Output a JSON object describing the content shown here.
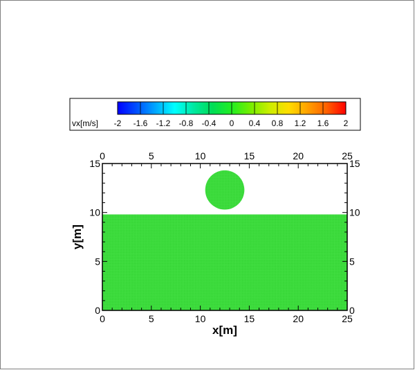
{
  "chart_data": {
    "type": "scatter",
    "xlabel": "x[m]",
    "ylabel": "y[m]",
    "xlim": [
      0,
      25
    ],
    "ylim": [
      0,
      15
    ],
    "xticks": [
      0,
      5,
      10,
      15,
      20,
      25
    ],
    "yticks": [
      0,
      5,
      10,
      15
    ],
    "grid": false,
    "particle_color": "#33dd33",
    "particle_spacing": 0.16,
    "regions": [
      {
        "shape": "rect",
        "x": [
          0,
          25
        ],
        "y": [
          0,
          9.8
        ],
        "vx": 0
      },
      {
        "shape": "circle",
        "cx": 12.5,
        "cy": 12.3,
        "r": 2.0,
        "vx": 0
      }
    ],
    "colorbar": {
      "variable": "vx[m/s]",
      "ticks": [
        "-2",
        "-1.6",
        "-1.2",
        "-0.8",
        "-0.4",
        "0",
        "0.4",
        "0.8",
        "1.2",
        "1.6",
        "2"
      ],
      "range": [
        -2,
        2
      ],
      "colors": [
        "#0000ff",
        "#0050ff",
        "#00a8ff",
        "#00ffff",
        "#00e8a0",
        "#00dd55",
        "#22ee22",
        "#77ee00",
        "#ccee00",
        "#ffdd00",
        "#ffa000",
        "#ff6000",
        "#ff0000"
      ]
    }
  }
}
